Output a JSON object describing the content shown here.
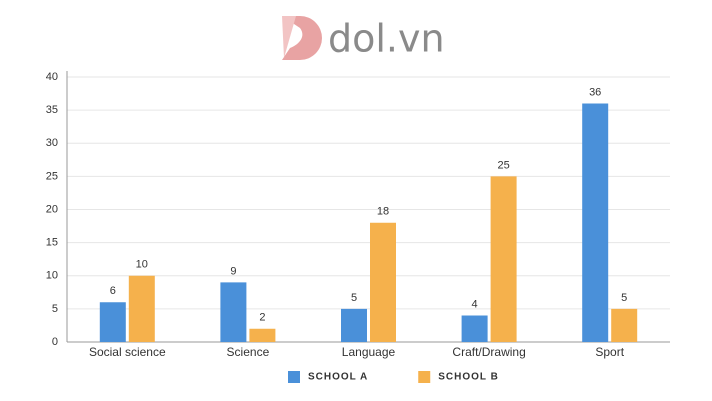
{
  "logo": "dol.vn",
  "chart_data": {
    "type": "bar",
    "categories": [
      "Social science",
      "Science",
      "Language",
      "Craft/Drawing",
      "Sport"
    ],
    "series": [
      {
        "name": "SCHOOL A",
        "color": "#4a90d9",
        "values": [
          6,
          9,
          5,
          4,
          36
        ]
      },
      {
        "name": "SCHOOL B",
        "color": "#f5b14c",
        "values": [
          10,
          2,
          18,
          25,
          5
        ]
      }
    ],
    "ylim": [
      0,
      40
    ],
    "yticks": [
      0,
      5,
      10,
      15,
      20,
      25,
      30,
      35,
      40
    ],
    "grid": true,
    "legend": "bottom"
  }
}
